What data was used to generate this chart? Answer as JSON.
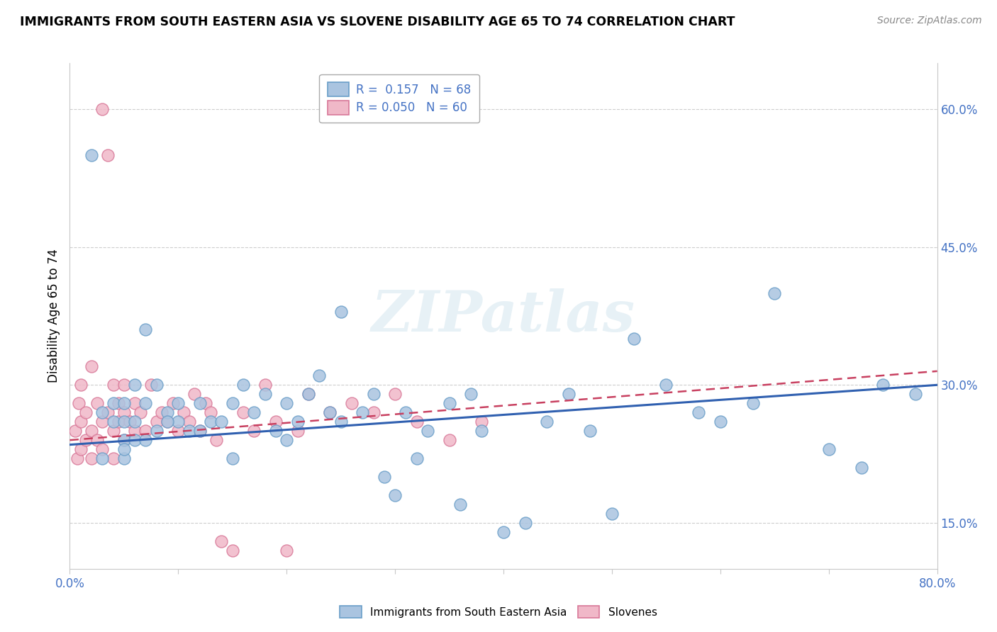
{
  "title": "IMMIGRANTS FROM SOUTH EASTERN ASIA VS SLOVENE DISABILITY AGE 65 TO 74 CORRELATION CHART",
  "source": "Source: ZipAtlas.com",
  "ylabel": "Disability Age 65 to 74",
  "xlim": [
    0.0,
    0.8
  ],
  "ylim": [
    0.1,
    0.65
  ],
  "ytick_positions": [
    0.15,
    0.3,
    0.45,
    0.6
  ],
  "ytick_labels": [
    "15.0%",
    "30.0%",
    "45.0%",
    "60.0%"
  ],
  "xtick_labels": [
    "0.0%",
    "",
    "",
    "",
    "",
    "",
    "",
    "",
    "80.0%"
  ],
  "xticks": [
    0.0,
    0.1,
    0.2,
    0.3,
    0.4,
    0.5,
    0.6,
    0.7,
    0.8
  ],
  "blue_color": "#aac4e0",
  "blue_edge": "#6a9ec8",
  "pink_color": "#f0b8c8",
  "pink_edge": "#d87898",
  "blue_line_color": "#3060b0",
  "pink_line_color": "#c84060",
  "R_blue": 0.157,
  "N_blue": 68,
  "R_pink": 0.05,
  "N_pink": 60,
  "legend_label_blue": "Immigrants from South Eastern Asia",
  "legend_label_pink": "Slovenes",
  "watermark": "ZIPatlas",
  "blue_scatter_x": [
    0.02,
    0.03,
    0.04,
    0.04,
    0.05,
    0.05,
    0.05,
    0.05,
    0.06,
    0.06,
    0.06,
    0.07,
    0.07,
    0.08,
    0.08,
    0.09,
    0.1,
    0.1,
    0.11,
    0.12,
    0.13,
    0.14,
    0.15,
    0.16,
    0.17,
    0.18,
    0.19,
    0.2,
    0.21,
    0.22,
    0.23,
    0.24,
    0.25,
    0.27,
    0.28,
    0.29,
    0.3,
    0.31,
    0.32,
    0.33,
    0.35,
    0.36,
    0.37,
    0.38,
    0.4,
    0.42,
    0.44,
    0.46,
    0.48,
    0.5,
    0.52,
    0.55,
    0.58,
    0.6,
    0.63,
    0.65,
    0.7,
    0.73,
    0.75,
    0.78,
    0.03,
    0.05,
    0.07,
    0.09,
    0.12,
    0.15,
    0.2,
    0.25
  ],
  "blue_scatter_y": [
    0.55,
    0.27,
    0.26,
    0.28,
    0.24,
    0.26,
    0.28,
    0.22,
    0.24,
    0.26,
    0.3,
    0.24,
    0.28,
    0.25,
    0.3,
    0.27,
    0.28,
    0.26,
    0.25,
    0.28,
    0.26,
    0.26,
    0.28,
    0.3,
    0.27,
    0.29,
    0.25,
    0.28,
    0.26,
    0.29,
    0.31,
    0.27,
    0.38,
    0.27,
    0.29,
    0.2,
    0.18,
    0.27,
    0.22,
    0.25,
    0.28,
    0.17,
    0.29,
    0.25,
    0.14,
    0.15,
    0.26,
    0.29,
    0.25,
    0.16,
    0.35,
    0.3,
    0.27,
    0.26,
    0.28,
    0.4,
    0.23,
    0.21,
    0.3,
    0.29,
    0.22,
    0.23,
    0.36,
    0.26,
    0.25,
    0.22,
    0.24,
    0.26
  ],
  "pink_scatter_x": [
    0.005,
    0.007,
    0.008,
    0.01,
    0.01,
    0.01,
    0.015,
    0.015,
    0.02,
    0.02,
    0.02,
    0.025,
    0.025,
    0.03,
    0.03,
    0.03,
    0.035,
    0.035,
    0.04,
    0.04,
    0.04,
    0.045,
    0.045,
    0.05,
    0.05,
    0.05,
    0.055,
    0.06,
    0.06,
    0.065,
    0.07,
    0.075,
    0.08,
    0.085,
    0.09,
    0.095,
    0.1,
    0.105,
    0.11,
    0.115,
    0.12,
    0.125,
    0.13,
    0.135,
    0.14,
    0.15,
    0.16,
    0.17,
    0.18,
    0.19,
    0.2,
    0.21,
    0.22,
    0.24,
    0.26,
    0.28,
    0.3,
    0.32,
    0.35,
    0.38
  ],
  "pink_scatter_y": [
    0.25,
    0.22,
    0.28,
    0.23,
    0.26,
    0.3,
    0.24,
    0.27,
    0.22,
    0.25,
    0.32,
    0.24,
    0.28,
    0.6,
    0.23,
    0.26,
    0.27,
    0.55,
    0.22,
    0.25,
    0.3,
    0.26,
    0.28,
    0.24,
    0.27,
    0.3,
    0.26,
    0.25,
    0.28,
    0.27,
    0.25,
    0.3,
    0.26,
    0.27,
    0.26,
    0.28,
    0.25,
    0.27,
    0.26,
    0.29,
    0.25,
    0.28,
    0.27,
    0.24,
    0.13,
    0.12,
    0.27,
    0.25,
    0.3,
    0.26,
    0.12,
    0.25,
    0.29,
    0.27,
    0.28,
    0.27,
    0.29,
    0.26,
    0.24,
    0.26
  ],
  "blue_trend_x0": 0.0,
  "blue_trend_y0": 0.235,
  "blue_trend_x1": 0.8,
  "blue_trend_y1": 0.3,
  "pink_trend_x0": 0.0,
  "pink_trend_y0": 0.24,
  "pink_trend_x1": 0.8,
  "pink_trend_y1": 0.315,
  "background_color": "#ffffff",
  "grid_color": "#c8c8c8"
}
